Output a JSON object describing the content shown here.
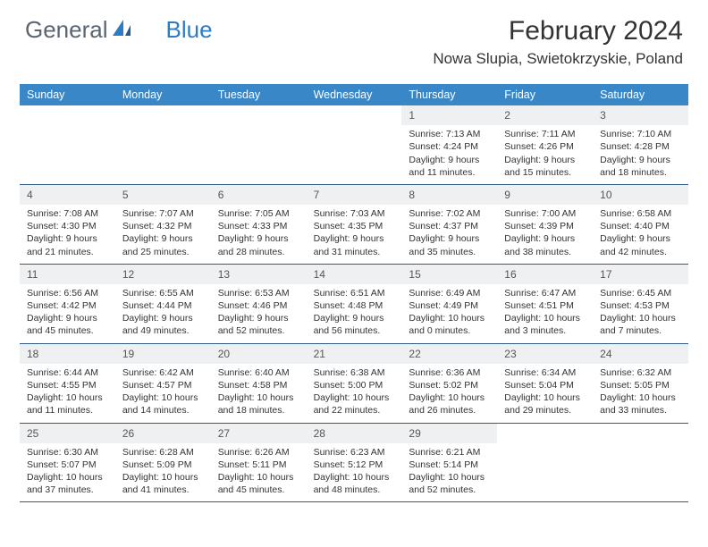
{
  "brand": {
    "part1": "General",
    "part2": "Blue"
  },
  "title": "February 2024",
  "location": "Nowa Slupia, Swietokrzyskie, Poland",
  "day_names": [
    "Sunday",
    "Monday",
    "Tuesday",
    "Wednesday",
    "Thursday",
    "Friday",
    "Saturday"
  ],
  "colors": {
    "header_bg": "#3a87c8",
    "border": "#2f5b86",
    "daynum_bg": "#eef0f2",
    "logo_gray": "#5a6570",
    "logo_blue": "#2e7cc4"
  },
  "weeks": [
    [
      {
        "empty": true
      },
      {
        "empty": true
      },
      {
        "empty": true
      },
      {
        "empty": true
      },
      {
        "n": "1",
        "sr": "7:13 AM",
        "ss": "4:24 PM",
        "dl": "9 hours and 11 minutes."
      },
      {
        "n": "2",
        "sr": "7:11 AM",
        "ss": "4:26 PM",
        "dl": "9 hours and 15 minutes."
      },
      {
        "n": "3",
        "sr": "7:10 AM",
        "ss": "4:28 PM",
        "dl": "9 hours and 18 minutes."
      }
    ],
    [
      {
        "n": "4",
        "sr": "7:08 AM",
        "ss": "4:30 PM",
        "dl": "9 hours and 21 minutes."
      },
      {
        "n": "5",
        "sr": "7:07 AM",
        "ss": "4:32 PM",
        "dl": "9 hours and 25 minutes."
      },
      {
        "n": "6",
        "sr": "7:05 AM",
        "ss": "4:33 PM",
        "dl": "9 hours and 28 minutes."
      },
      {
        "n": "7",
        "sr": "7:03 AM",
        "ss": "4:35 PM",
        "dl": "9 hours and 31 minutes."
      },
      {
        "n": "8",
        "sr": "7:02 AM",
        "ss": "4:37 PM",
        "dl": "9 hours and 35 minutes."
      },
      {
        "n": "9",
        "sr": "7:00 AM",
        "ss": "4:39 PM",
        "dl": "9 hours and 38 minutes."
      },
      {
        "n": "10",
        "sr": "6:58 AM",
        "ss": "4:40 PM",
        "dl": "9 hours and 42 minutes."
      }
    ],
    [
      {
        "n": "11",
        "sr": "6:56 AM",
        "ss": "4:42 PM",
        "dl": "9 hours and 45 minutes."
      },
      {
        "n": "12",
        "sr": "6:55 AM",
        "ss": "4:44 PM",
        "dl": "9 hours and 49 minutes."
      },
      {
        "n": "13",
        "sr": "6:53 AM",
        "ss": "4:46 PM",
        "dl": "9 hours and 52 minutes."
      },
      {
        "n": "14",
        "sr": "6:51 AM",
        "ss": "4:48 PM",
        "dl": "9 hours and 56 minutes."
      },
      {
        "n": "15",
        "sr": "6:49 AM",
        "ss": "4:49 PM",
        "dl": "10 hours and 0 minutes."
      },
      {
        "n": "16",
        "sr": "6:47 AM",
        "ss": "4:51 PM",
        "dl": "10 hours and 3 minutes."
      },
      {
        "n": "17",
        "sr": "6:45 AM",
        "ss": "4:53 PM",
        "dl": "10 hours and 7 minutes."
      }
    ],
    [
      {
        "n": "18",
        "sr": "6:44 AM",
        "ss": "4:55 PM",
        "dl": "10 hours and 11 minutes."
      },
      {
        "n": "19",
        "sr": "6:42 AM",
        "ss": "4:57 PM",
        "dl": "10 hours and 14 minutes."
      },
      {
        "n": "20",
        "sr": "6:40 AM",
        "ss": "4:58 PM",
        "dl": "10 hours and 18 minutes."
      },
      {
        "n": "21",
        "sr": "6:38 AM",
        "ss": "5:00 PM",
        "dl": "10 hours and 22 minutes."
      },
      {
        "n": "22",
        "sr": "6:36 AM",
        "ss": "5:02 PM",
        "dl": "10 hours and 26 minutes."
      },
      {
        "n": "23",
        "sr": "6:34 AM",
        "ss": "5:04 PM",
        "dl": "10 hours and 29 minutes."
      },
      {
        "n": "24",
        "sr": "6:32 AM",
        "ss": "5:05 PM",
        "dl": "10 hours and 33 minutes."
      }
    ],
    [
      {
        "n": "25",
        "sr": "6:30 AM",
        "ss": "5:07 PM",
        "dl": "10 hours and 37 minutes."
      },
      {
        "n": "26",
        "sr": "6:28 AM",
        "ss": "5:09 PM",
        "dl": "10 hours and 41 minutes."
      },
      {
        "n": "27",
        "sr": "6:26 AM",
        "ss": "5:11 PM",
        "dl": "10 hours and 45 minutes."
      },
      {
        "n": "28",
        "sr": "6:23 AM",
        "ss": "5:12 PM",
        "dl": "10 hours and 48 minutes."
      },
      {
        "n": "29",
        "sr": "6:21 AM",
        "ss": "5:14 PM",
        "dl": "10 hours and 52 minutes."
      },
      {
        "empty": true
      },
      {
        "empty": true
      }
    ]
  ],
  "labels": {
    "sunrise": "Sunrise: ",
    "sunset": "Sunset: ",
    "daylight": "Daylight: "
  }
}
